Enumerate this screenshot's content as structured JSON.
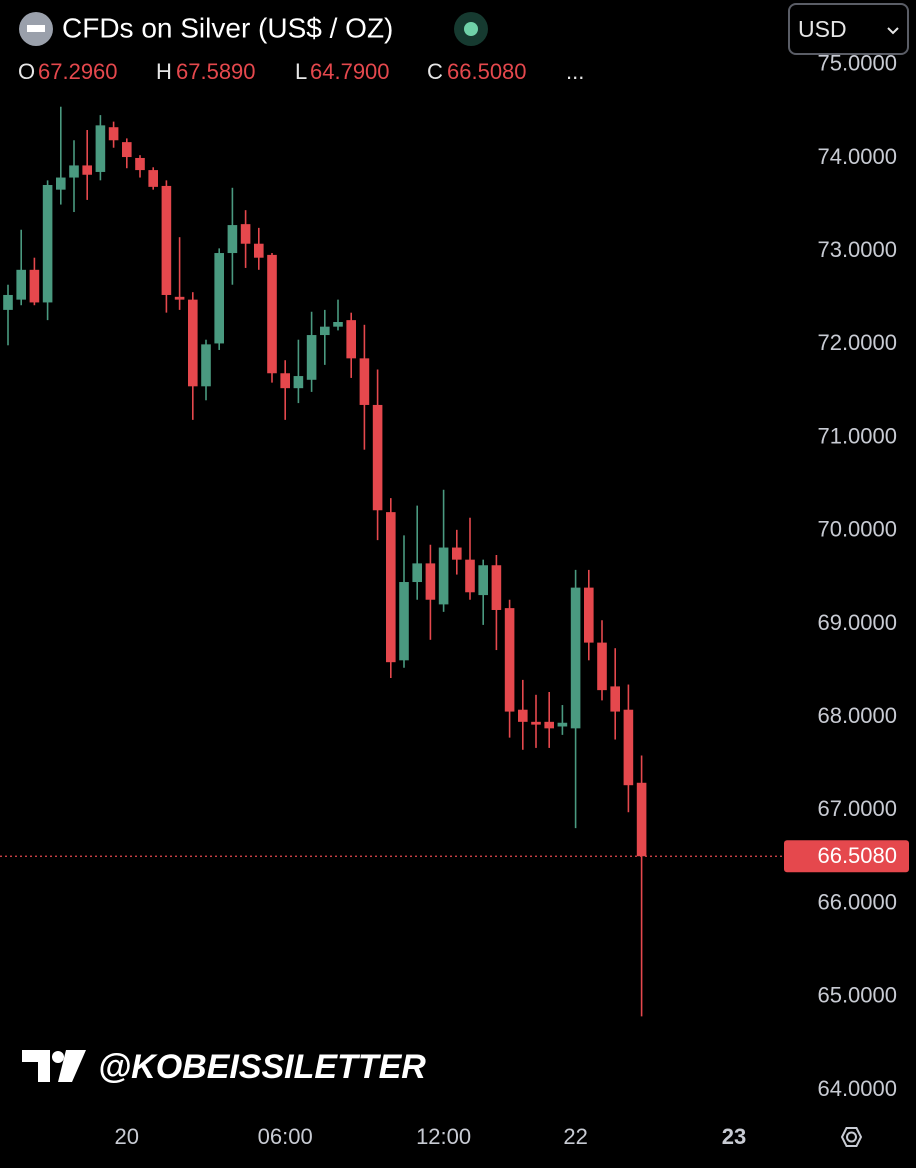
{
  "chart_data": {
    "type": "candlestick",
    "title": "CFDs on Silver (US$ / OZ)",
    "currency": "USD",
    "ohlc_legend": [
      {
        "key": "O",
        "value": 67.296,
        "label": "67.2960"
      },
      {
        "key": "H",
        "value": 67.589,
        "label": "67.5890"
      },
      {
        "key": "L",
        "value": 64.79,
        "label": "64.7900"
      },
      {
        "key": "C",
        "value": 66.508,
        "label": "66.5080"
      }
    ],
    "more": "...",
    "watermark": "@KOBEISSILETTER",
    "last_price": {
      "value": 66.508,
      "label": "66.5080"
    },
    "up_color": "#4a9a80",
    "down_color": "#e5484d",
    "categories": [
      null,
      null,
      null,
      null,
      null,
      null,
      null,
      null,
      null,
      "20",
      null,
      null,
      null,
      null,
      null,
      null,
      null,
      null,
      null,
      null,
      null,
      "06:00",
      null,
      null,
      null,
      null,
      null,
      null,
      null,
      null,
      null,
      null,
      null,
      "12:00",
      null,
      null,
      null,
      null,
      null,
      null,
      null,
      null,
      null,
      "22",
      null,
      null,
      null,
      null,
      null,
      null,
      null,
      null,
      null,
      null,
      null,
      "23"
    ],
    "open": [
      72.37,
      72.48,
      72.8,
      72.45,
      73.66,
      73.79,
      73.92,
      73.85,
      74.33,
      74.17,
      74.0,
      73.87,
      73.7,
      72.51,
      72.48,
      71.55,
      72.01,
      72.98,
      73.29,
      73.08,
      72.96,
      71.69,
      71.53,
      71.62,
      72.1,
      72.19,
      72.26,
      71.85,
      71.35,
      70.2,
      68.61,
      69.45,
      69.65,
      69.21,
      69.82,
      69.69,
      69.31,
      69.63,
      69.17,
      68.08,
      67.95,
      67.95,
      67.9,
      67.88,
      69.39,
      68.8,
      68.33,
      68.08,
      67.296,
      null,
      null,
      null,
      null,
      null,
      null,
      null
    ],
    "high": [
      72.64,
      73.23,
      72.93,
      73.76,
      74.55,
      74.19,
      74.3,
      74.46,
      74.39,
      74.21,
      74.03,
      73.9,
      73.76,
      73.15,
      72.56,
      72.05,
      73.03,
      73.68,
      73.44,
      73.25,
      72.98,
      71.83,
      72.05,
      72.35,
      72.37,
      72.48,
      72.34,
      72.21,
      71.73,
      70.35,
      69.95,
      70.27,
      69.85,
      70.44,
      70.01,
      70.14,
      69.69,
      69.74,
      69.26,
      68.4,
      68.24,
      68.27,
      68.13,
      69.58,
      69.58,
      69.04,
      68.74,
      68.35,
      67.589,
      null,
      null,
      null,
      null,
      null,
      null,
      null
    ],
    "low": [
      71.99,
      72.42,
      72.42,
      72.26,
      73.5,
      73.42,
      73.55,
      73.76,
      74.11,
      73.89,
      73.79,
      73.66,
      72.34,
      72.37,
      71.19,
      71.4,
      71.94,
      72.64,
      72.82,
      72.8,
      71.59,
      71.19,
      71.37,
      71.49,
      71.78,
      72.15,
      71.64,
      70.87,
      69.9,
      68.42,
      68.53,
      69.26,
      68.83,
      69.13,
      69.53,
      69.26,
      68.99,
      68.72,
      67.78,
      67.65,
      67.67,
      67.67,
      67.81,
      66.81,
      68.61,
      68.18,
      67.76,
      66.98,
      64.79,
      null,
      null,
      null,
      null,
      null,
      null,
      null
    ],
    "close": [
      72.53,
      72.8,
      72.45,
      73.71,
      73.79,
      73.92,
      73.82,
      74.35,
      74.19,
      74.01,
      73.87,
      73.69,
      72.53,
      72.48,
      71.55,
      72.0,
      72.98,
      73.28,
      73.08,
      72.93,
      71.69,
      71.53,
      71.66,
      72.1,
      72.19,
      72.24,
      71.85,
      71.35,
      70.22,
      68.59,
      69.45,
      69.65,
      69.26,
      69.82,
      69.69,
      69.34,
      69.63,
      69.15,
      68.06,
      67.95,
      67.92,
      67.88,
      67.94,
      69.39,
      68.8,
      68.29,
      68.06,
      67.27,
      66.508,
      null,
      null,
      null,
      null,
      null,
      null,
      null
    ],
    "ylim": [
      63.785,
      75.695
    ],
    "yticks": [
      {
        "value": 64,
        "label": "64.0000"
      },
      {
        "value": 65,
        "label": "65.0000"
      },
      {
        "value": 66,
        "label": "66.0000"
      },
      {
        "value": 67,
        "label": "67.0000"
      },
      {
        "value": 68,
        "label": "68.0000"
      },
      {
        "value": 69,
        "label": "69.0000"
      },
      {
        "value": 70,
        "label": "70.0000"
      },
      {
        "value": 71,
        "label": "71.0000"
      },
      {
        "value": 72,
        "label": "72.0000"
      },
      {
        "value": 73,
        "label": "73.0000"
      },
      {
        "value": 74,
        "label": "74.0000"
      },
      {
        "value": 75,
        "label": "75.0000"
      }
    ],
    "grid": false
  }
}
